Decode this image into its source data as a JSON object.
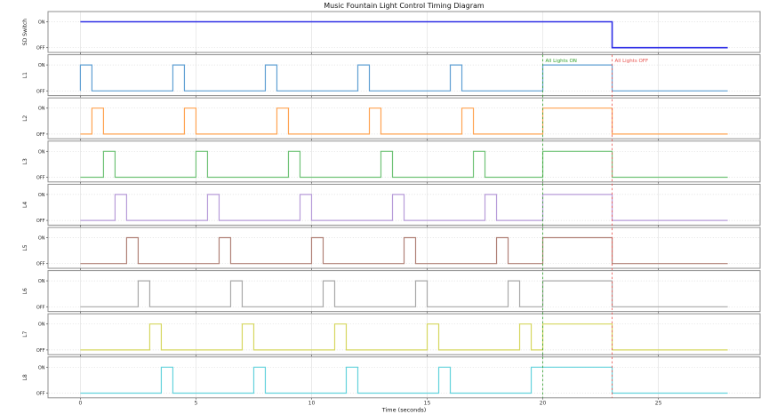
{
  "chart_data": {
    "type": "line",
    "subtype": "timing-diagram",
    "title": "Music Fountain Light Control Timing Diagram",
    "xlabel": "Time (seconds)",
    "x_ticks": [
      0,
      5,
      10,
      15,
      20,
      25
    ],
    "x_tick_labels": [
      "0",
      "5",
      "10",
      "15",
      "20",
      "25"
    ],
    "xlim": [
      -1.4,
      29.4
    ],
    "t_end": 28,
    "y_tick_labels": [
      "ON",
      "OFF"
    ],
    "grid": true,
    "legend_position": "none",
    "annotations": [
      {
        "label": "All Lights ON",
        "x": 20,
        "color": "#33a02c",
        "line_style": "dashed"
      },
      {
        "label": "All Lights OFF",
        "x": 23,
        "color": "#e8534f",
        "line_style": "dashed"
      }
    ],
    "series": [
      {
        "name": "SD Switch",
        "color": "#2e2ee6",
        "linewidth": 1.6,
        "starts_on": true,
        "on_intervals": [
          [
            0,
            23
          ]
        ]
      },
      {
        "name": "L1",
        "color": "#5f9fd3",
        "linewidth": 1.2,
        "starts_on": false,
        "on_intervals": [
          [
            0,
            0.5
          ],
          [
            4,
            4.5
          ],
          [
            8,
            8.5
          ],
          [
            12,
            12.5
          ],
          [
            16,
            16.5
          ],
          [
            20,
            23
          ]
        ]
      },
      {
        "name": "L2",
        "color": "#ffa351",
        "linewidth": 1.2,
        "starts_on": false,
        "on_intervals": [
          [
            0.5,
            1
          ],
          [
            4.5,
            5
          ],
          [
            8.5,
            9
          ],
          [
            12.5,
            13
          ],
          [
            16.5,
            17
          ],
          [
            20,
            23
          ]
        ]
      },
      {
        "name": "L3",
        "color": "#6fc276",
        "linewidth": 1.2,
        "starts_on": false,
        "on_intervals": [
          [
            1,
            1.5
          ],
          [
            5,
            5.5
          ],
          [
            9,
            9.5
          ],
          [
            13,
            13.5
          ],
          [
            17,
            17.5
          ],
          [
            20,
            23
          ]
        ]
      },
      {
        "name": "L4",
        "color": "#b79cd9",
        "linewidth": 1.2,
        "starts_on": false,
        "on_intervals": [
          [
            1.5,
            2
          ],
          [
            5.5,
            6
          ],
          [
            9.5,
            10
          ],
          [
            13.5,
            14
          ],
          [
            17.5,
            18
          ],
          [
            20,
            23
          ]
        ]
      },
      {
        "name": "L5",
        "color": "#b08177",
        "linewidth": 1.2,
        "starts_on": false,
        "on_intervals": [
          [
            2,
            2.5
          ],
          [
            6,
            6.5
          ],
          [
            10,
            10.5
          ],
          [
            14,
            14.5
          ],
          [
            18,
            18.5
          ],
          [
            20,
            23
          ]
        ]
      },
      {
        "name": "L6",
        "color": "#a8a8a8",
        "linewidth": 1.2,
        "starts_on": false,
        "on_intervals": [
          [
            2.5,
            3
          ],
          [
            6.5,
            7
          ],
          [
            10.5,
            11
          ],
          [
            14.5,
            15
          ],
          [
            18.5,
            19
          ],
          [
            20,
            23
          ]
        ]
      },
      {
        "name": "L7",
        "color": "#d6d75f",
        "linewidth": 1.2,
        "starts_on": false,
        "on_intervals": [
          [
            3,
            3.5
          ],
          [
            7,
            7.5
          ],
          [
            11,
            11.5
          ],
          [
            15,
            15.5
          ],
          [
            19,
            19.5
          ],
          [
            20,
            23
          ]
        ]
      },
      {
        "name": "L8",
        "color": "#63d2dc",
        "linewidth": 1.2,
        "starts_on": false,
        "on_intervals": [
          [
            3.5,
            4
          ],
          [
            7.5,
            8
          ],
          [
            11.5,
            12
          ],
          [
            15.5,
            16
          ],
          [
            19.5,
            20
          ],
          [
            20,
            23
          ]
        ]
      }
    ]
  }
}
